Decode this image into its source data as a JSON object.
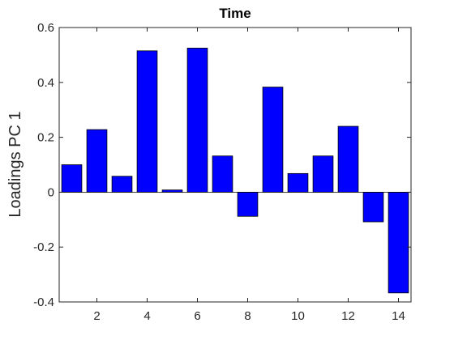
{
  "chart_data": {
    "type": "bar",
    "title": "Time",
    "xlabel": "",
    "ylabel": "Loadings PC 1",
    "x": [
      1,
      2,
      3,
      4,
      5,
      6,
      7,
      8,
      9,
      10,
      11,
      12,
      13,
      14
    ],
    "values": [
      0.1,
      0.228,
      0.058,
      0.515,
      0.008,
      0.525,
      0.132,
      -0.088,
      0.383,
      0.068,
      0.132,
      0.24,
      -0.108,
      -0.367
    ],
    "xlim": [
      0.5,
      14.5
    ],
    "ylim": [
      -0.4,
      0.6
    ],
    "xticks": [
      2,
      4,
      6,
      8,
      10,
      12,
      14
    ],
    "yticks": [
      -0.4,
      -0.2,
      0,
      0.2,
      0.4,
      0.6
    ],
    "xtick_labels": [
      "2",
      "4",
      "6",
      "8",
      "10",
      "12",
      "14"
    ],
    "ytick_labels": [
      "-0.4",
      "-0.2",
      "0",
      "0.2",
      "0.4",
      "0.6"
    ],
    "bar_color": "#0000ff",
    "grid": false,
    "legend": "none"
  }
}
